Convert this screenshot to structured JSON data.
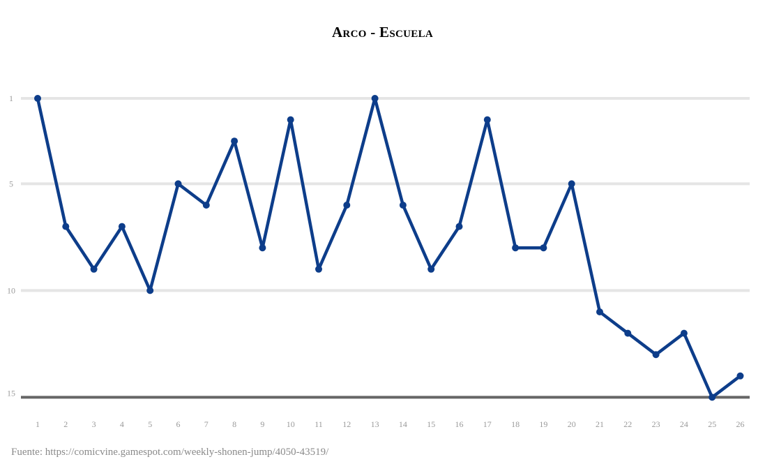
{
  "chart_data": {
    "type": "line",
    "title": "Arco - Escuela",
    "xlabel": "",
    "ylabel": "",
    "x": [
      "1",
      "2",
      "3",
      "4",
      "5",
      "6",
      "7",
      "8",
      "9",
      "10",
      "11",
      "12",
      "13",
      "14",
      "15",
      "16",
      "17",
      "18",
      "19",
      "20",
      "21",
      "22",
      "23",
      "24",
      "25",
      "26"
    ],
    "series": [
      {
        "values": [
          1,
          7,
          9,
          7,
          10,
          5,
          6,
          3,
          8,
          2,
          9,
          6,
          1,
          6,
          9,
          7,
          2,
          8,
          8,
          5,
          11,
          12,
          13,
          12,
          15,
          14
        ]
      }
    ],
    "y_ticks": [
      "1",
      "5",
      "10",
      "15"
    ],
    "ylim": [
      1,
      15
    ],
    "y_inverted": true,
    "grid": true,
    "colors": {
      "line": "#0d3d8a",
      "grid": "#e5e5e5",
      "baseline": "#666666"
    }
  },
  "source": "Fuente: https://comicvine.gamespot.com/weekly-shonen-jump/4050-43519/"
}
